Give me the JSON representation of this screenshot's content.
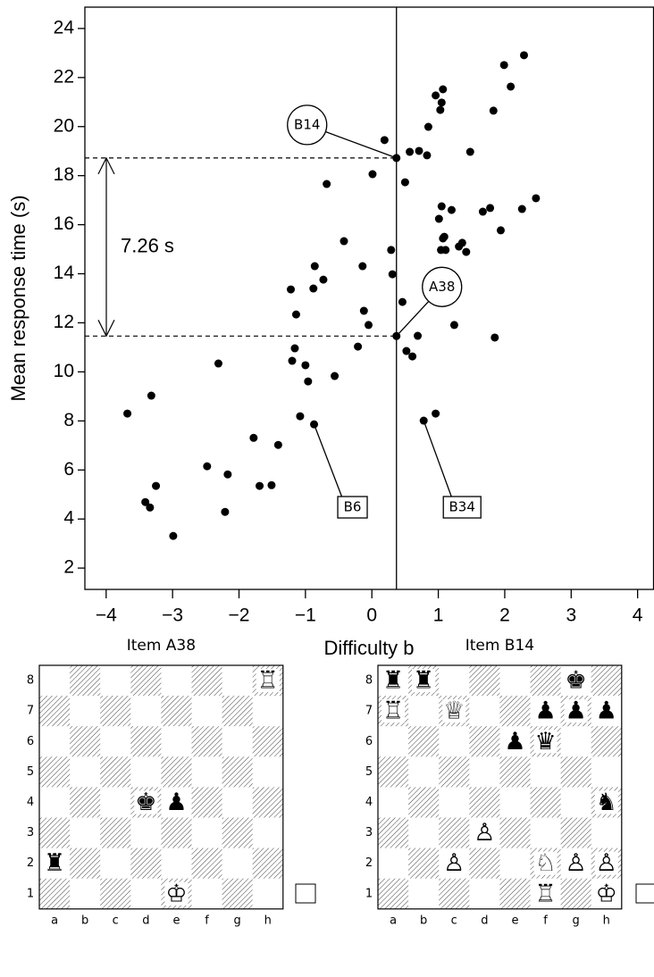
{
  "chart_data": {
    "type": "scatter",
    "xlabel": "Difficulty b",
    "ylabel": "Mean response time (s)",
    "xlim": [
      -4.32,
      4.24
    ],
    "ylim": [
      1.13,
      24.87
    ],
    "xticks": [
      {
        "value": -4,
        "label": "−4"
      },
      {
        "value": -3,
        "label": "−3"
      },
      {
        "value": -2,
        "label": "−2"
      },
      {
        "value": -1,
        "label": "−1"
      },
      0,
      1,
      2,
      3,
      4
    ],
    "yticks": [
      2,
      4,
      6,
      8,
      10,
      12,
      14,
      16,
      18,
      20,
      22,
      24
    ],
    "color": "#000000",
    "vline": 0.37,
    "bracket_label": "7.26 s",
    "x": [
      -3.68,
      -3.41,
      -3.34,
      -3.32,
      -3.25,
      -2.99,
      -2.48,
      -2.31,
      -2.21,
      -2.17,
      -1.78,
      -1.69,
      -1.51,
      -1.41,
      -1.22,
      -1.2,
      -1.16,
      -1.14,
      -1.08,
      -1.0,
      -0.96,
      -0.87,
      -0.88,
      -0.86,
      -0.73,
      -0.68,
      -0.56,
      -0.42,
      -0.21,
      -0.14,
      -0.12,
      -0.05,
      0.01,
      0.19,
      0.29,
      0.31,
      0.37,
      0.37,
      0.46,
      0.5,
      0.52,
      0.57,
      0.61,
      0.69,
      0.71,
      0.78,
      0.83,
      0.85,
      0.96,
      0.96,
      1.01,
      1.03,
      1.07,
      1.05,
      1.05,
      1.04,
      1.07,
      1.09,
      1.11,
      1.2,
      1.24,
      1.31,
      1.36,
      1.42,
      1.48,
      1.67,
      1.78,
      1.83,
      1.85,
      1.94,
      1.99,
      2.09,
      2.29,
      2.26,
      2.47
    ],
    "values": [
      8.3,
      4.69,
      4.47,
      9.03,
      5.35,
      3.31,
      6.15,
      10.34,
      4.29,
      5.82,
      7.31,
      5.35,
      5.38,
      7.02,
      13.36,
      10.45,
      10.96,
      12.34,
      8.19,
      10.27,
      9.61,
      7.86,
      13.4,
      14.31,
      13.76,
      17.66,
      9.83,
      15.33,
      11.03,
      14.31,
      12.49,
      11.91,
      18.06,
      19.45,
      14.97,
      13.98,
      18.72,
      11.46,
      12.85,
      17.73,
      10.85,
      18.97,
      10.63,
      11.47,
      19.01,
      8.01,
      18.83,
      19.99,
      8.3,
      21.27,
      16.24,
      20.68,
      21.52,
      20.98,
      16.75,
      14.97,
      15.44,
      15.51,
      14.97,
      16.6,
      11.91,
      15.11,
      15.26,
      14.89,
      18.97,
      16.53,
      16.68,
      20.65,
      11.4,
      15.77,
      22.51,
      21.63,
      22.91,
      16.64,
      17.08
    ],
    "labels": [
      null,
      null,
      null,
      null,
      null,
      null,
      null,
      null,
      null,
      null,
      null,
      null,
      null,
      null,
      null,
      null,
      null,
      null,
      null,
      null,
      null,
      "B6",
      null,
      null,
      null,
      null,
      null,
      null,
      null,
      null,
      null,
      null,
      null,
      null,
      null,
      null,
      "B14",
      "A38",
      null,
      null,
      null,
      null,
      null,
      null,
      null,
      "B34",
      null,
      null,
      null,
      null,
      null,
      null,
      null,
      null,
      null,
      null,
      null,
      null,
      null,
      null,
      null,
      null,
      null,
      null,
      null,
      null,
      null,
      null,
      null,
      null,
      null,
      null,
      null,
      null,
      null
    ]
  },
  "boards": [
    {
      "title": "Item A38",
      "files": [
        "a",
        "b",
        "c",
        "d",
        "e",
        "f",
        "g",
        "h"
      ],
      "ranks": [
        "8",
        "7",
        "6",
        "5",
        "4",
        "3",
        "2",
        "1"
      ],
      "rows": [
        [
          null,
          null,
          null,
          null,
          null,
          null,
          null,
          "♖"
        ],
        [
          null,
          null,
          null,
          null,
          null,
          null,
          null,
          null
        ],
        [
          null,
          null,
          null,
          null,
          null,
          null,
          null,
          null
        ],
        [
          null,
          null,
          null,
          null,
          null,
          null,
          null,
          null
        ],
        [
          null,
          null,
          null,
          "♚",
          "♟",
          null,
          null,
          null
        ],
        [
          null,
          null,
          null,
          null,
          null,
          null,
          null,
          null
        ],
        [
          "♜",
          null,
          null,
          null,
          null,
          null,
          null,
          null
        ],
        [
          null,
          null,
          null,
          null,
          "♔",
          null,
          null,
          null
        ]
      ]
    },
    {
      "title": "Item B14",
      "files": [
        "a",
        "b",
        "c",
        "d",
        "e",
        "f",
        "g",
        "h"
      ],
      "ranks": [
        "8",
        "7",
        "6",
        "5",
        "4",
        "3",
        "2",
        "1"
      ],
      "rows": [
        [
          "♜",
          "♜",
          null,
          null,
          null,
          null,
          "♚",
          null
        ],
        [
          "♖",
          null,
          "♕",
          null,
          null,
          "♟",
          "♟",
          "♟"
        ],
        [
          null,
          null,
          null,
          null,
          "♟",
          "♛",
          null,
          null
        ],
        [
          null,
          null,
          null,
          null,
          null,
          null,
          null,
          null
        ],
        [
          null,
          null,
          null,
          null,
          null,
          null,
          null,
          "♞"
        ],
        [
          null,
          null,
          null,
          "♙",
          null,
          null,
          null,
          null
        ],
        [
          null,
          null,
          "♙",
          null,
          null,
          "♘",
          "♙",
          "♙"
        ],
        [
          null,
          null,
          null,
          null,
          null,
          "♖",
          null,
          "♔"
        ]
      ]
    }
  ]
}
